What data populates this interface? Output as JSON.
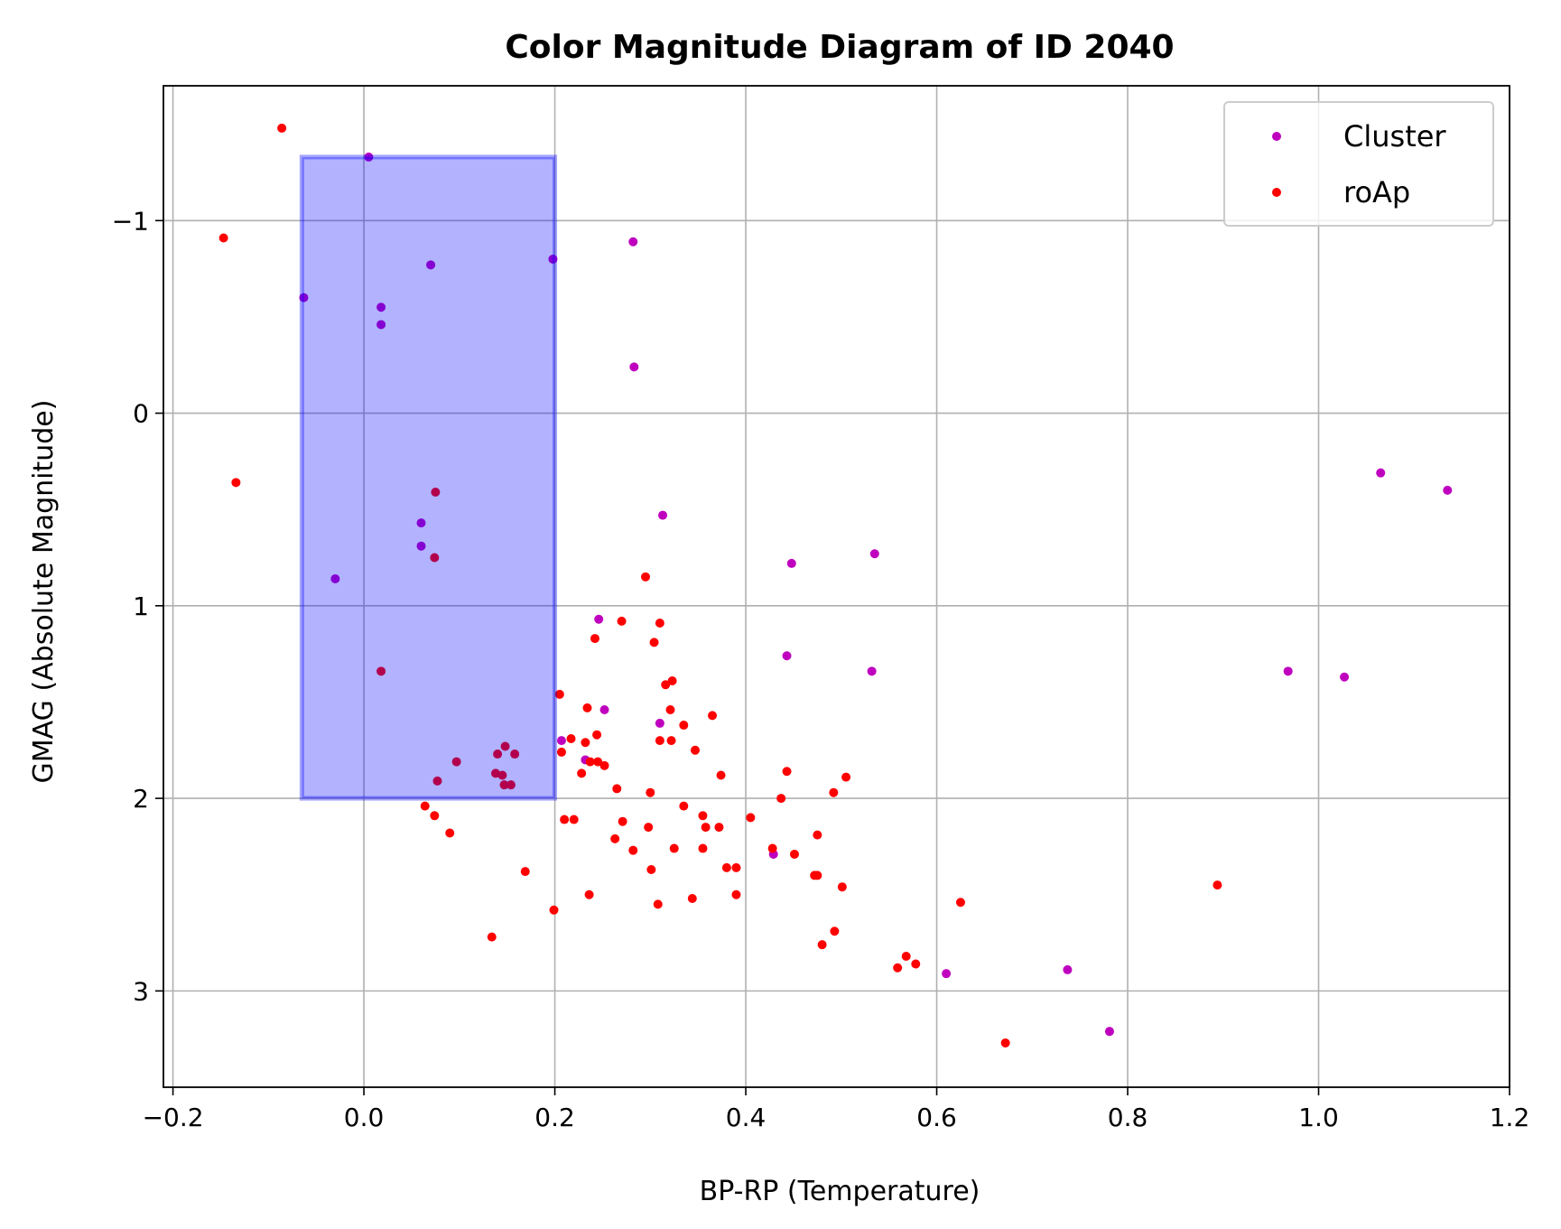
{
  "chart_data": {
    "type": "scatter",
    "title": "Color Magnitude Diagram of ID 2040",
    "xlabel": "BP-RP (Temperature)",
    "ylabel": "GMAG (Absolute Magnitude)",
    "xlim": [
      -0.21,
      1.2
    ],
    "ylim": [
      -1.7,
      3.5
    ],
    "y_inverted": true,
    "grid": true,
    "legend_position": "top-right",
    "x_ticks": [
      -0.2,
      0.0,
      0.2,
      0.4,
      0.6,
      0.8,
      1.0,
      1.2
    ],
    "x_tick_labels": [
      "−0.2",
      "0.0",
      "0.2",
      "0.4",
      "0.6",
      "0.8",
      "1.0",
      "1.2"
    ],
    "y_ticks": [
      -1,
      0,
      1,
      2,
      3
    ],
    "y_tick_labels": [
      "−1",
      "0",
      "1",
      "2",
      "3"
    ],
    "highlight_region": {
      "x": [
        -0.065,
        0.2
      ],
      "y": [
        -1.33,
        2.0
      ],
      "color": "#0000ff",
      "opacity": 0.3
    },
    "series": [
      {
        "name": "Cluster",
        "color": "#bf00bf",
        "points": [
          [
            0.005,
            -1.33
          ],
          [
            0.07,
            -0.77
          ],
          [
            0.198,
            -0.8
          ],
          [
            0.282,
            -0.89
          ],
          [
            -0.063,
            -0.6
          ],
          [
            0.018,
            -0.55
          ],
          [
            0.018,
            -0.46
          ],
          [
            0.283,
            -0.24
          ],
          [
            0.313,
            0.53
          ],
          [
            0.06,
            0.57
          ],
          [
            0.06,
            0.69
          ],
          [
            -0.03,
            0.86
          ],
          [
            0.448,
            0.78
          ],
          [
            0.535,
            0.73
          ],
          [
            1.065,
            0.31
          ],
          [
            1.135,
            0.4
          ],
          [
            0.246,
            1.07
          ],
          [
            0.443,
            1.26
          ],
          [
            0.532,
            1.34
          ],
          [
            0.968,
            1.34
          ],
          [
            1.027,
            1.37
          ],
          [
            0.252,
            1.54
          ],
          [
            0.31,
            1.61
          ],
          [
            0.207,
            1.7
          ],
          [
            0.232,
            1.8
          ],
          [
            0.429,
            2.29
          ],
          [
            0.61,
            2.91
          ],
          [
            0.737,
            2.89
          ],
          [
            0.781,
            3.21
          ]
        ]
      },
      {
        "name": "roAp",
        "color": "#ff0000",
        "points": [
          [
            -0.086,
            -1.48
          ],
          [
            -0.147,
            -0.91
          ],
          [
            -0.134,
            0.36
          ],
          [
            0.075,
            0.41
          ],
          [
            0.074,
            0.75
          ],
          [
            0.018,
            1.34
          ],
          [
            0.295,
            0.85
          ],
          [
            0.242,
            1.17
          ],
          [
            0.27,
            1.08
          ],
          [
            0.304,
            1.19
          ],
          [
            0.31,
            1.09
          ],
          [
            0.205,
            1.46
          ],
          [
            0.316,
            1.41
          ],
          [
            0.323,
            1.39
          ],
          [
            0.234,
            1.53
          ],
          [
            0.321,
            1.54
          ],
          [
            0.365,
            1.57
          ],
          [
            0.335,
            1.62
          ],
          [
            0.244,
            1.67
          ],
          [
            0.31,
            1.7
          ],
          [
            0.322,
            1.7
          ],
          [
            0.217,
            1.69
          ],
          [
            0.232,
            1.71
          ],
          [
            0.207,
            1.76
          ],
          [
            0.148,
            1.73
          ],
          [
            0.14,
            1.77
          ],
          [
            0.158,
            1.77
          ],
          [
            0.347,
            1.75
          ],
          [
            0.237,
            1.81
          ],
          [
            0.245,
            1.81
          ],
          [
            0.252,
            1.83
          ],
          [
            0.097,
            1.81
          ],
          [
            0.138,
            1.87
          ],
          [
            0.145,
            1.88
          ],
          [
            0.228,
            1.87
          ],
          [
            0.077,
            1.91
          ],
          [
            0.147,
            1.93
          ],
          [
            0.154,
            1.93
          ],
          [
            0.265,
            1.95
          ],
          [
            0.3,
            1.97
          ],
          [
            0.374,
            1.88
          ],
          [
            0.443,
            1.86
          ],
          [
            0.505,
            1.89
          ],
          [
            0.492,
            1.97
          ],
          [
            0.437,
            2.0
          ],
          [
            0.064,
            2.04
          ],
          [
            0.074,
            2.09
          ],
          [
            0.335,
            2.04
          ],
          [
            0.355,
            2.09
          ],
          [
            0.21,
            2.11
          ],
          [
            0.22,
            2.11
          ],
          [
            0.271,
            2.12
          ],
          [
            0.298,
            2.15
          ],
          [
            0.358,
            2.15
          ],
          [
            0.372,
            2.15
          ],
          [
            0.405,
            2.1
          ],
          [
            0.09,
            2.18
          ],
          [
            0.263,
            2.21
          ],
          [
            0.282,
            2.27
          ],
          [
            0.325,
            2.26
          ],
          [
            0.355,
            2.26
          ],
          [
            0.428,
            2.26
          ],
          [
            0.451,
            2.29
          ],
          [
            0.475,
            2.19
          ],
          [
            0.169,
            2.38
          ],
          [
            0.301,
            2.37
          ],
          [
            0.38,
            2.36
          ],
          [
            0.39,
            2.36
          ],
          [
            0.472,
            2.4
          ],
          [
            0.475,
            2.4
          ],
          [
            0.501,
            2.46
          ],
          [
            0.236,
            2.5
          ],
          [
            0.39,
            2.5
          ],
          [
            0.308,
            2.55
          ],
          [
            0.344,
            2.52
          ],
          [
            0.199,
            2.58
          ],
          [
            0.625,
            2.54
          ],
          [
            0.894,
            2.45
          ],
          [
            0.134,
            2.72
          ],
          [
            0.493,
            2.69
          ],
          [
            0.48,
            2.76
          ],
          [
            0.568,
            2.82
          ],
          [
            0.578,
            2.86
          ],
          [
            0.559,
            2.88
          ],
          [
            0.672,
            3.27
          ]
        ]
      }
    ]
  }
}
